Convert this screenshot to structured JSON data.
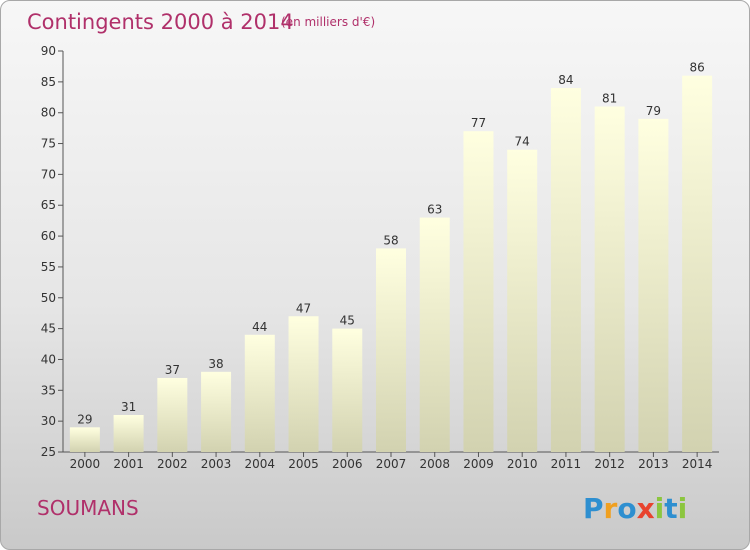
{
  "title": "Contingents 2000 à 2014",
  "subtitle": "(en milliers d'€)",
  "commune": "SOUMANS",
  "logo": {
    "letters": [
      "P",
      "r",
      "o",
      "x",
      "i",
      "t",
      "i"
    ],
    "colors": [
      "#2e8fd0",
      "#f0a020",
      "#2e8fd0",
      "#e8432e",
      "#8cc63f",
      "#2e8fd0",
      "#8cc63f"
    ]
  },
  "colors": {
    "title": "#b0306a",
    "bar_top": "#ffffe0",
    "bar_bottom": "#d2d2b0"
  },
  "chart_data": {
    "type": "bar",
    "title": "Contingents 2000 à 2014",
    "subtitle": "(en milliers d'€)",
    "categories": [
      "2000",
      "2001",
      "2002",
      "2003",
      "2004",
      "2005",
      "2006",
      "2007",
      "2008",
      "2009",
      "2010",
      "2011",
      "2012",
      "2013",
      "2014"
    ],
    "values": [
      29,
      31,
      37,
      38,
      44,
      47,
      45,
      58,
      63,
      77,
      74,
      84,
      81,
      79,
      86
    ],
    "ylim": [
      25,
      90
    ],
    "yticks": [
      25,
      30,
      35,
      40,
      45,
      50,
      55,
      60,
      65,
      70,
      75,
      80,
      85,
      90
    ],
    "xlabel": "",
    "ylabel": "",
    "grid": false,
    "data_labels": true
  }
}
